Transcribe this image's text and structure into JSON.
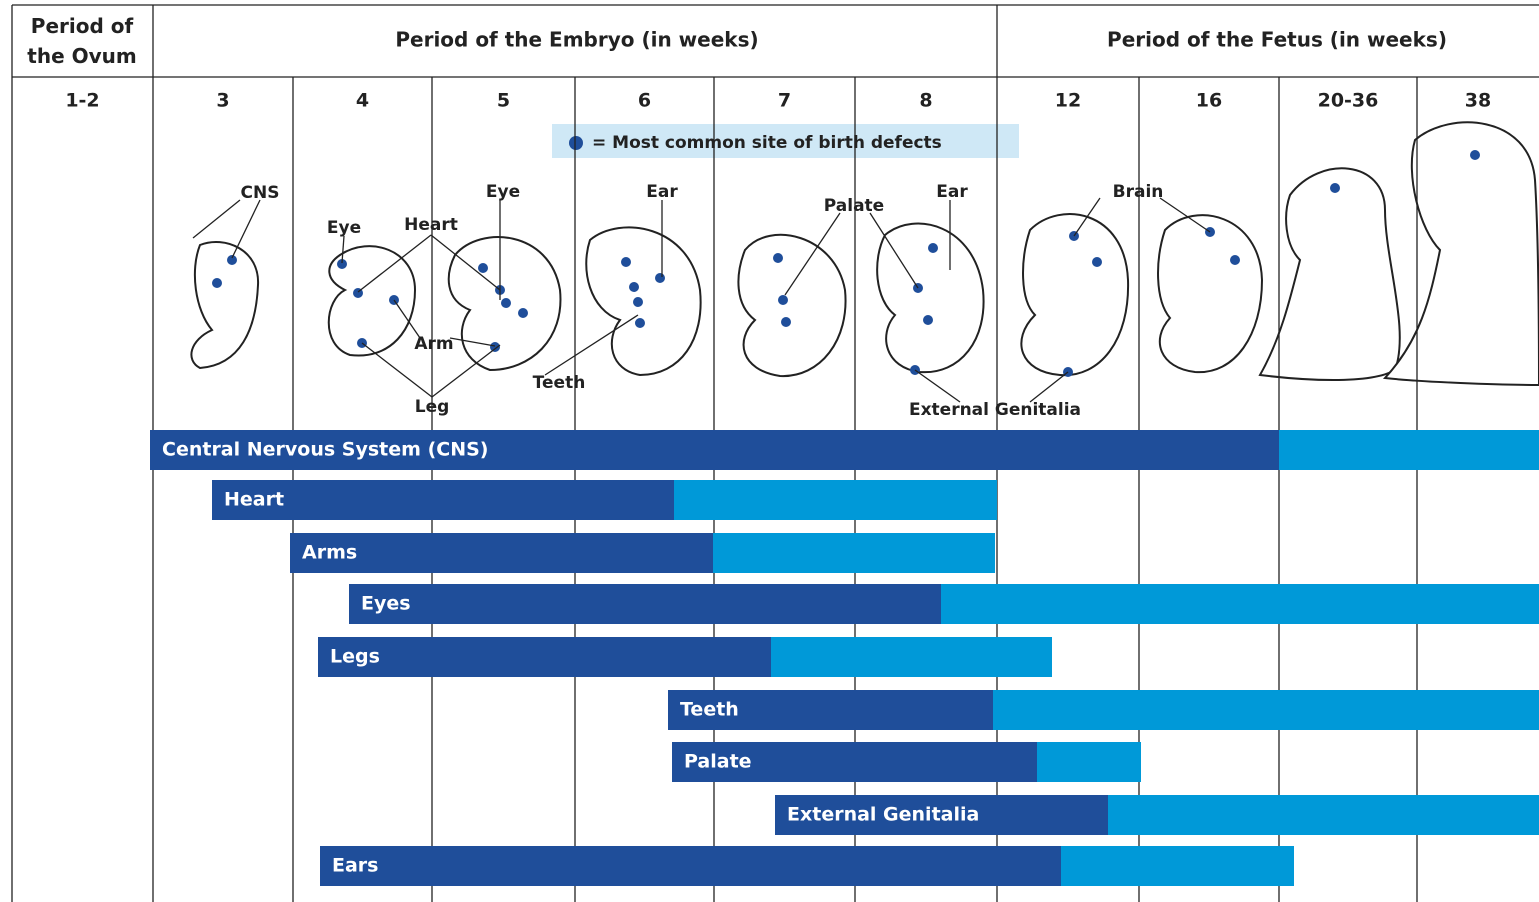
{
  "header": {
    "ovum": "Period of the Ovum",
    "embryo": "Period of the Embryo (in weeks)",
    "fetus": "Period of the Fetus (in weeks)"
  },
  "weeks": [
    "1-2",
    "3",
    "4",
    "5",
    "6",
    "7",
    "8",
    "12",
    "16",
    "20-36",
    "38"
  ],
  "legend": "= Most common site of birth defects",
  "site_labels": [
    "CNS",
    "Eye",
    "Heart",
    "Eye",
    "Arm",
    "Leg",
    "Teeth",
    "Ear",
    "Palate",
    "Ear",
    "Brain",
    "External Genitalia"
  ],
  "bars": [
    "Central Nervous System (CNS)",
    "Heart",
    "Arms",
    "Eyes",
    "Legs",
    "Teeth",
    "Palate",
    "External Genitalia",
    "Ears"
  ]
}
